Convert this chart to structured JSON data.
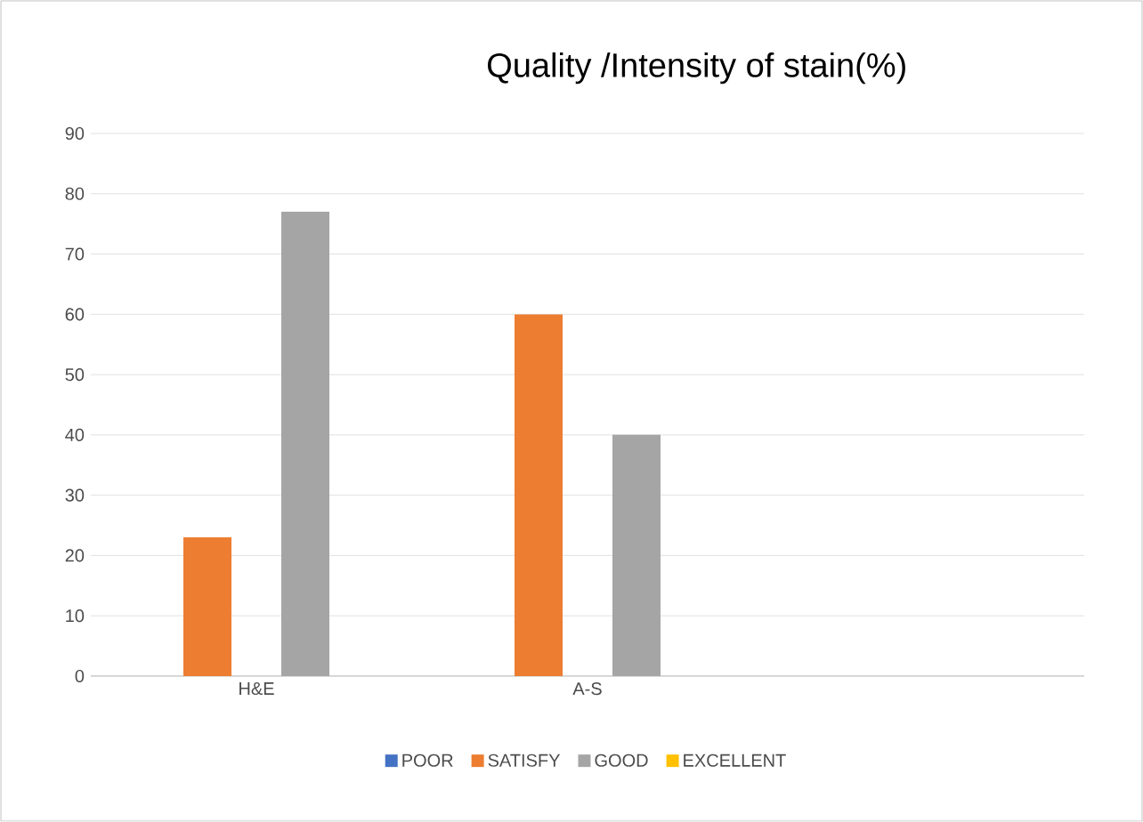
{
  "chart_data": {
    "type": "bar",
    "title": "Quality /Intensity of stain(%)",
    "categories": [
      "H&E",
      "A-S",
      null
    ],
    "series": [
      {
        "name": "POOR",
        "color": "#4472c4",
        "values": [
          null,
          null,
          null
        ]
      },
      {
        "name": "SATISFY",
        "color": "#ed7d31",
        "values": [
          23,
          60,
          null
        ]
      },
      {
        "name": "GOOD",
        "color": "#a5a5a5",
        "values": [
          77,
          40,
          null
        ]
      },
      {
        "name": "EXCELLENT",
        "color": "#ffc000",
        "values": [
          null,
          null,
          null
        ]
      }
    ],
    "ylim": [
      0,
      90
    ],
    "yticks": [
      0,
      10,
      20,
      30,
      40,
      50,
      60,
      70,
      80,
      90
    ],
    "grid": "y",
    "legend": "bottom"
  }
}
